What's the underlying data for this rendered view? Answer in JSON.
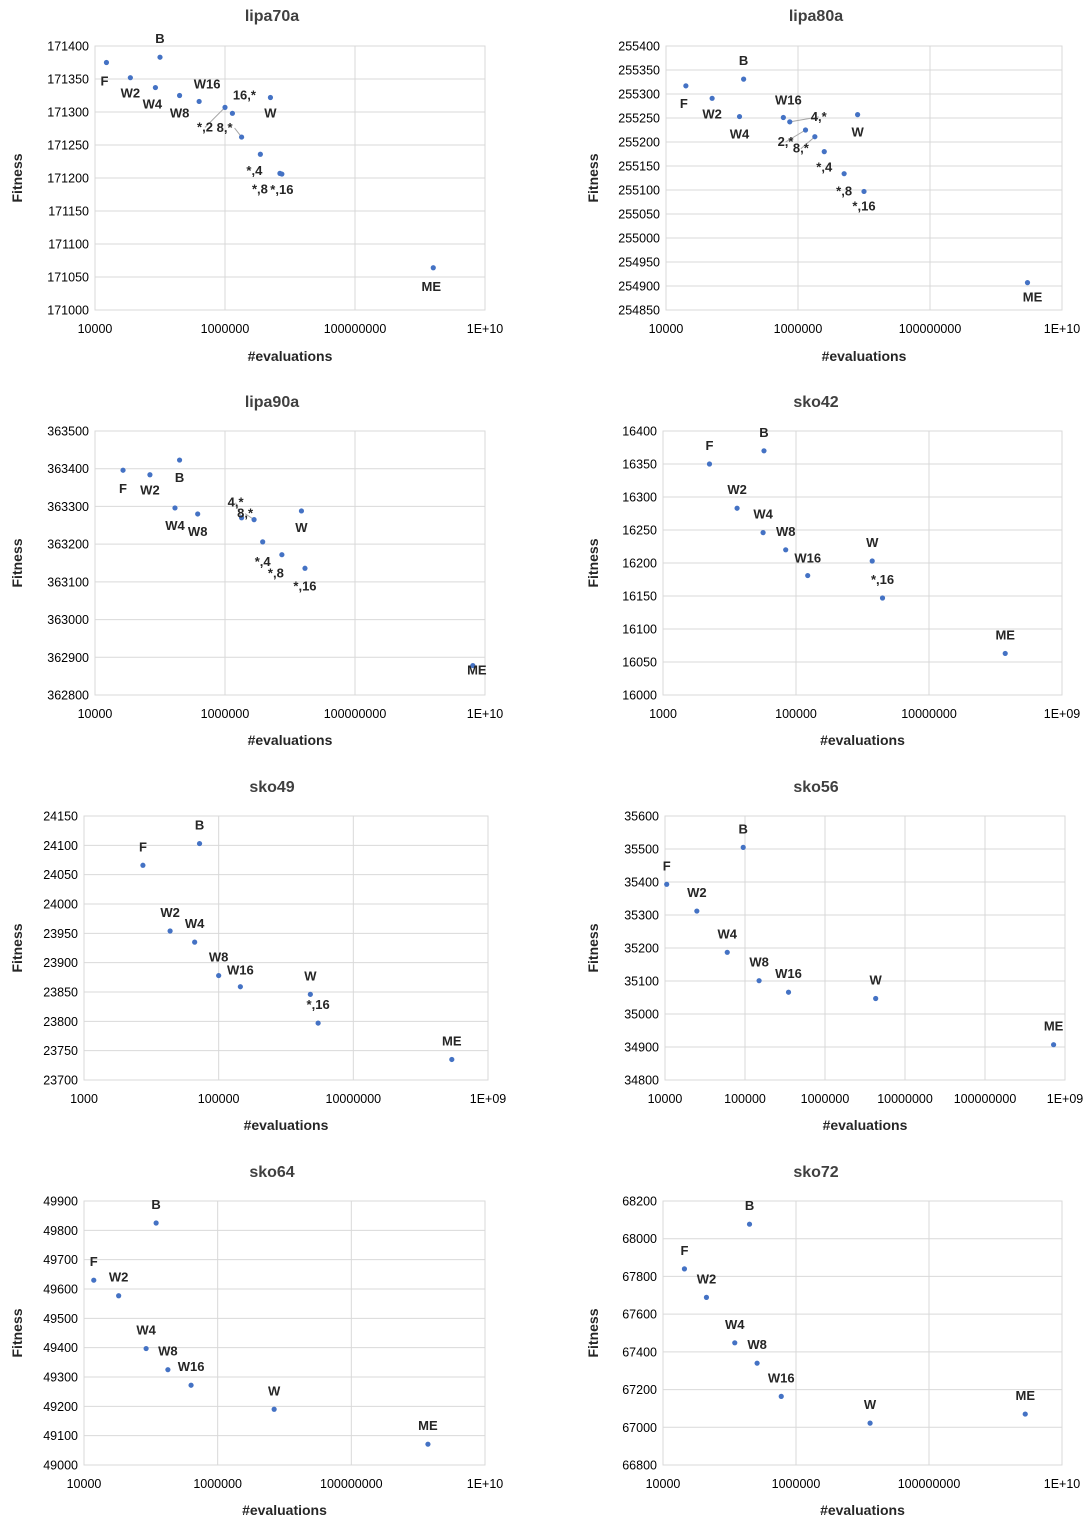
{
  "accent_color": "#4472c4",
  "chart_data": [
    {
      "type": "scatter",
      "title": "lipa70a",
      "xlabel": "#evaluations",
      "ylabel": "Fitness",
      "xscale": "log",
      "xlim": [
        10000,
        10000000000
      ],
      "ylim": [
        171000,
        171400
      ],
      "xticks": [
        10000,
        1000000,
        100000000,
        10000000000
      ],
      "xtick_labels": [
        "10000",
        "1000000",
        "100000000",
        "1E+10"
      ],
      "yticks": [
        171000,
        171050,
        171100,
        171150,
        171200,
        171250,
        171300,
        171350,
        171400
      ],
      "grid": true,
      "points": [
        {
          "label": "F",
          "x": 15000,
          "y": 171375
        },
        {
          "label": "B",
          "x": 100000,
          "y": 171383
        },
        {
          "label": "W2",
          "x": 35000,
          "y": 171352
        },
        {
          "label": "W4",
          "x": 85000,
          "y": 171337
        },
        {
          "label": "W8",
          "x": 200000,
          "y": 171325
        },
        {
          "label": "W16",
          "x": 400000,
          "y": 171316
        },
        {
          "label": "16,*",
          "x": 1300000,
          "y": 171298
        },
        {
          "label": "W",
          "x": 5000000,
          "y": 171322
        },
        {
          "label": "*,2",
          "x": 1000000,
          "y": 171307
        },
        {
          "label": "8,*",
          "x": 1800000,
          "y": 171262
        },
        {
          "label": "*,4",
          "x": 3500000,
          "y": 171236
        },
        {
          "label": "*,8",
          "x": 7000000,
          "y": 171207
        },
        {
          "label": "*,16",
          "x": 7500000,
          "y": 171206
        },
        {
          "label": "ME",
          "x": 1600000000,
          "y": 171064
        }
      ]
    },
    {
      "type": "scatter",
      "title": "lipa80a",
      "xlabel": "#evaluations",
      "ylabel": "Fitness",
      "xscale": "log",
      "xlim": [
        10000,
        10000000000
      ],
      "ylim": [
        254850,
        255400
      ],
      "xticks": [
        10000,
        1000000,
        100000000,
        10000000000
      ],
      "xtick_labels": [
        "10000",
        "1000000",
        "100000000",
        "1E+10"
      ],
      "yticks": [
        254850,
        254900,
        254950,
        255000,
        255050,
        255100,
        255150,
        255200,
        255250,
        255300,
        255350,
        255400
      ],
      "grid": true,
      "points": [
        {
          "label": "F",
          "x": 20000,
          "y": 255317
        },
        {
          "label": "B",
          "x": 150000,
          "y": 255331
        },
        {
          "label": "W2",
          "x": 50000,
          "y": 255291
        },
        {
          "label": "W4",
          "x": 130000,
          "y": 255253
        },
        {
          "label": "W16",
          "x": 600000,
          "y": 255251
        },
        {
          "label": "4,*",
          "x": 750000,
          "y": 255242
        },
        {
          "label": "W",
          "x": 8000000,
          "y": 255257
        },
        {
          "label": "2,*",
          "x": 1300000,
          "y": 255225
        },
        {
          "label": "8,*",
          "x": 1800000,
          "y": 255211
        },
        {
          "label": "*,4",
          "x": 2500000,
          "y": 255180
        },
        {
          "label": "*,8",
          "x": 5000000,
          "y": 255134
        },
        {
          "label": "*,16",
          "x": 10000000,
          "y": 255097
        },
        {
          "label": "ME",
          "x": 3000000000,
          "y": 254907
        }
      ]
    },
    {
      "type": "scatter",
      "title": "lipa90a",
      "xlabel": "#evaluations",
      "ylabel": "Fitness",
      "xscale": "log",
      "xlim": [
        10000,
        10000000000
      ],
      "ylim": [
        362800,
        363500
      ],
      "xticks": [
        10000,
        1000000,
        100000000,
        10000000000
      ],
      "xtick_labels": [
        "10000",
        "1000000",
        "100000000",
        "1E+10"
      ],
      "yticks": [
        362800,
        362900,
        363000,
        363100,
        363200,
        363300,
        363400,
        363500
      ],
      "grid": true,
      "points": [
        {
          "label": "F",
          "x": 27000,
          "y": 363396
        },
        {
          "label": "B",
          "x": 200000,
          "y": 363423
        },
        {
          "label": "W2",
          "x": 70000,
          "y": 363384
        },
        {
          "label": "W4",
          "x": 170000,
          "y": 363296
        },
        {
          "label": "W8",
          "x": 380000,
          "y": 363280
        },
        {
          "label": "4,*",
          "x": 1800000,
          "y": 363270
        },
        {
          "label": "W",
          "x": 15000000,
          "y": 363288
        },
        {
          "label": "8,*",
          "x": 2800000,
          "y": 363265
        },
        {
          "label": "*,4",
          "x": 3800000,
          "y": 363206
        },
        {
          "label": "*,8",
          "x": 7500000,
          "y": 363172
        },
        {
          "label": "*,16",
          "x": 17000000,
          "y": 363136
        },
        {
          "label": "ME",
          "x": 6500000000,
          "y": 362878
        }
      ]
    },
    {
      "type": "scatter",
      "title": "sko42",
      "xlabel": "#evaluations",
      "ylabel": "Fitness",
      "xscale": "log",
      "xlim": [
        1000,
        1000000000
      ],
      "ylim": [
        16000,
        16400
      ],
      "xticks": [
        1000,
        100000,
        10000000,
        1000000000
      ],
      "xtick_labels": [
        "1000",
        "100000",
        "10000000",
        "1E+09"
      ],
      "yticks": [
        16000,
        16050,
        16100,
        16150,
        16200,
        16250,
        16300,
        16350,
        16400
      ],
      "grid": true,
      "points": [
        {
          "label": "F",
          "x": 5000,
          "y": 16350
        },
        {
          "label": "B",
          "x": 33000,
          "y": 16370
        },
        {
          "label": "W2",
          "x": 13000,
          "y": 16283
        },
        {
          "label": "W4",
          "x": 32000,
          "y": 16246
        },
        {
          "label": "W8",
          "x": 70000,
          "y": 16220
        },
        {
          "label": "W16",
          "x": 150000,
          "y": 16181
        },
        {
          "label": "W",
          "x": 1400000,
          "y": 16203
        },
        {
          "label": "*,16",
          "x": 2000000,
          "y": 16147
        },
        {
          "label": "ME",
          "x": 140000000,
          "y": 16063
        }
      ]
    },
    {
      "type": "scatter",
      "title": "sko49",
      "xlabel": "#evaluations",
      "ylabel": "Fitness",
      "xscale": "log",
      "xlim": [
        1000,
        1000000000
      ],
      "ylim": [
        23700,
        24150
      ],
      "xticks": [
        1000,
        100000,
        10000000,
        1000000000
      ],
      "xtick_labels": [
        "1000",
        "100000",
        "10000000",
        "1E+09"
      ],
      "yticks": [
        23700,
        23750,
        23800,
        23850,
        23900,
        23950,
        24000,
        24050,
        24100,
        24150
      ],
      "grid": true,
      "points": [
        {
          "label": "F",
          "x": 7500,
          "y": 24066
        },
        {
          "label": "B",
          "x": 52000,
          "y": 24103
        },
        {
          "label": "W2",
          "x": 19000,
          "y": 23954
        },
        {
          "label": "W4",
          "x": 44000,
          "y": 23935
        },
        {
          "label": "W8",
          "x": 100000,
          "y": 23878
        },
        {
          "label": "W16",
          "x": 210000,
          "y": 23859
        },
        {
          "label": "W",
          "x": 2300000,
          "y": 23846
        },
        {
          "label": "*,16",
          "x": 3000000,
          "y": 23797
        },
        {
          "label": "ME",
          "x": 290000000,
          "y": 23735
        }
      ]
    },
    {
      "type": "scatter",
      "title": "sko56",
      "xlabel": "#evaluations",
      "ylabel": "Fitness",
      "xscale": "log",
      "xlim": [
        10000,
        1000000000
      ],
      "ylim": [
        34800,
        35600
      ],
      "xticks": [
        10000,
        100000,
        1000000,
        10000000,
        100000000,
        1000000000
      ],
      "xtick_labels": [
        "10000",
        "100000",
        "1000000",
        "10000000",
        "100000000",
        "1E+09"
      ],
      "yticks": [
        34800,
        34900,
        35000,
        35100,
        35200,
        35300,
        35400,
        35500,
        35600
      ],
      "grid": true,
      "points": [
        {
          "label": "F",
          "x": 10500,
          "y": 35393
        },
        {
          "label": "B",
          "x": 95000,
          "y": 35505
        },
        {
          "label": "W2",
          "x": 25000,
          "y": 35312
        },
        {
          "label": "W4",
          "x": 60000,
          "y": 35187
        },
        {
          "label": "W8",
          "x": 150000,
          "y": 35101
        },
        {
          "label": "W16",
          "x": 350000,
          "y": 35066
        },
        {
          "label": "W",
          "x": 4300000,
          "y": 35047
        },
        {
          "label": "ME",
          "x": 720000000,
          "y": 34907
        }
      ]
    },
    {
      "type": "scatter",
      "title": "sko64",
      "xlabel": "#evaluations",
      "ylabel": "Fitness",
      "xscale": "log",
      "xlim": [
        10000,
        10000000000
      ],
      "ylim": [
        49000,
        49900
      ],
      "xticks": [
        10000,
        1000000,
        100000000,
        10000000000
      ],
      "xtick_labels": [
        "10000",
        "1000000",
        "100000000",
        "1E+10"
      ],
      "yticks": [
        49000,
        49100,
        49200,
        49300,
        49400,
        49500,
        49600,
        49700,
        49800,
        49900
      ],
      "grid": true,
      "points": [
        {
          "label": "F",
          "x": 14000,
          "y": 49630
        },
        {
          "label": "B",
          "x": 120000,
          "y": 49825
        },
        {
          "label": "W2",
          "x": 33000,
          "y": 49577
        },
        {
          "label": "W4",
          "x": 85000,
          "y": 49397
        },
        {
          "label": "W8",
          "x": 180000,
          "y": 49325
        },
        {
          "label": "W16",
          "x": 400000,
          "y": 49272
        },
        {
          "label": "W",
          "x": 7000000,
          "y": 49190
        },
        {
          "label": "ME",
          "x": 1400000000,
          "y": 49071
        }
      ]
    },
    {
      "type": "scatter",
      "title": "sko72",
      "xlabel": "#evaluations",
      "ylabel": "Fitness",
      "xscale": "log",
      "xlim": [
        10000,
        10000000000
      ],
      "ylim": [
        66800,
        68200
      ],
      "xticks": [
        10000,
        1000000,
        100000000,
        10000000000
      ],
      "xtick_labels": [
        "10000",
        "1000000",
        "100000000",
        "1E+10"
      ],
      "yticks": [
        66800,
        67000,
        67200,
        67400,
        67600,
        67800,
        68000,
        68200
      ],
      "grid": true,
      "points": [
        {
          "label": "F",
          "x": 21000,
          "y": 67840
        },
        {
          "label": "B",
          "x": 200000,
          "y": 68077
        },
        {
          "label": "W2",
          "x": 45000,
          "y": 67689
        },
        {
          "label": "W4",
          "x": 120000,
          "y": 67448
        },
        {
          "label": "W8",
          "x": 260000,
          "y": 67340
        },
        {
          "label": "W16",
          "x": 600000,
          "y": 67164
        },
        {
          "label": "W",
          "x": 13000000,
          "y": 67022
        },
        {
          "label": "ME",
          "x": 2800000000,
          "y": 67070
        }
      ]
    }
  ]
}
